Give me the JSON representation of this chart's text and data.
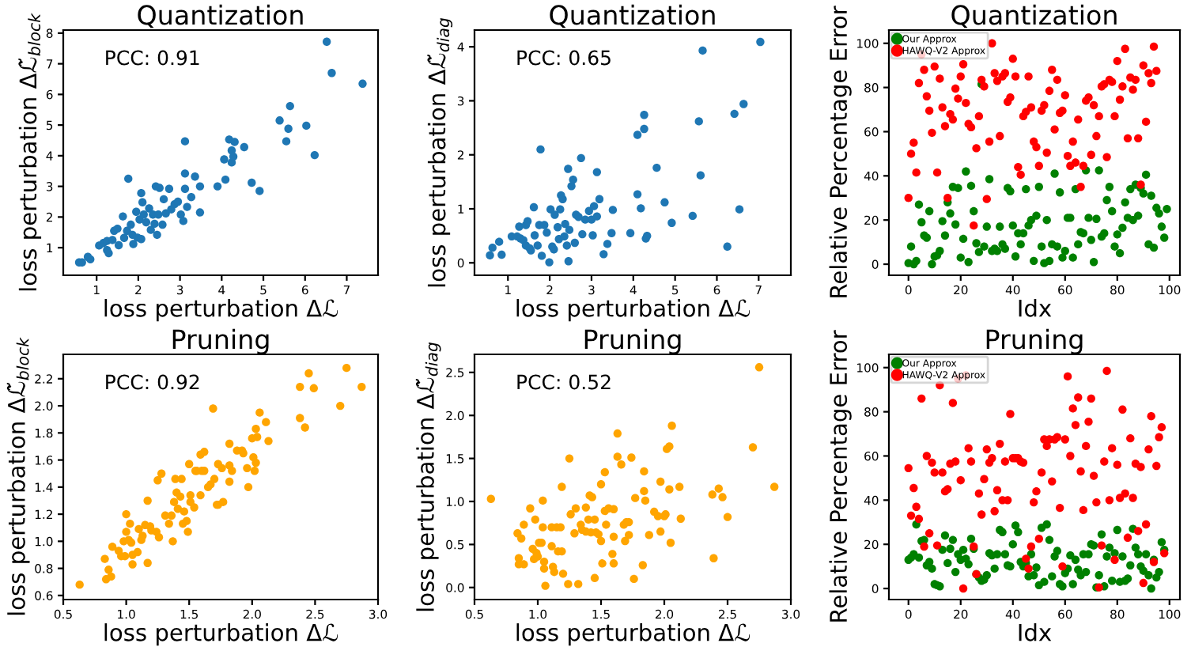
{
  "chart_data": [
    {
      "type": "scatter",
      "title": "Quantization",
      "xlabel": "loss perturbation Δℒ",
      "ylabel": "loss perturbation Δℒ̃$_{block}$",
      "annotations": [
        "PCC: 0.91"
      ],
      "xlim": [
        0.2,
        7.75
      ],
      "ylim": [
        0.1,
        8.1
      ],
      "xticks": [
        1,
        2,
        3,
        4,
        5,
        6,
        7
      ],
      "yticks": [
        1,
        2,
        3,
        4,
        5,
        6,
        7,
        8
      ],
      "marker": "circle",
      "grid": false,
      "legend": false,
      "series": [
        {
          "color": "#1f77b4",
          "x": [
            0.58,
            0.65,
            0.79,
            0.85,
            1.06,
            1.16,
            1.25,
            1.25,
            1.29,
            1.38,
            1.42,
            1.5,
            1.53,
            1.63,
            1.66,
            1.73,
            1.76,
            1.82,
            1.86,
            1.88,
            1.95,
            1.98,
            2.03,
            2.07,
            2.07,
            2.1,
            2.13,
            2.19,
            2.26,
            2.3,
            2.35,
            2.39,
            2.42,
            2.45,
            2.48,
            2.51,
            2.58,
            2.61,
            2.66,
            2.74,
            2.79,
            2.87,
            2.95,
            3.02,
            3.08,
            3.12,
            3.12,
            3.12,
            3.17,
            3.27,
            3.36,
            3.48,
            3.48,
            3.9,
            4.06,
            4.09,
            4.18,
            4.24,
            4.24,
            4.28,
            4.31,
            4.54,
            4.72,
            4.91,
            5.39,
            5.55,
            5.6,
            5.64,
            6.03,
            6.23,
            6.52,
            6.64,
            7.38
          ],
          "values": [
            0.52,
            0.52,
            0.7,
            0.62,
            1.07,
            1.15,
            1.22,
            0.92,
            0.82,
            1.25,
            1.55,
            1.62,
            1.08,
            2.02,
            1.32,
            1.55,
            3.25,
            1.75,
            1.42,
            1.12,
            2.17,
            1.33,
            1.92,
            2.78,
            1.28,
            2.48,
            2.08,
            1.83,
            2.28,
            1.58,
            2.08,
            1.78,
            3.0,
            1.42,
            2.08,
            2.95,
            1.75,
            2.58,
            2.12,
            2.92,
            2.25,
            2.42,
            2.5,
            2.08,
            1.87,
            4.47,
            3.42,
            2.92,
            2.33,
            2.65,
            3.32,
            3.0,
            2.15,
            3.0,
            3.88,
            3.22,
            4.53,
            3.78,
            4.17,
            3.97,
            4.45,
            4.28,
            3.12,
            2.85,
            5.15,
            4.47,
            4.88,
            5.62,
            4.98,
            4.02,
            7.72,
            6.7,
            6.35
          ]
        }
      ]
    },
    {
      "type": "scatter",
      "title": "Quantization",
      "xlabel": "loss perturbation Δℒ",
      "ylabel": "loss perturbation Δℒ̃$_{diag}$",
      "annotations": [
        "PCC: 0.65"
      ],
      "xlim": [
        0.2,
        7.77
      ],
      "ylim": [
        -0.23,
        4.31
      ],
      "xticks": [
        1,
        2,
        3,
        4,
        5,
        6,
        7
      ],
      "yticks": [
        0,
        1,
        2,
        3,
        4
      ],
      "marker": "circle",
      "grid": false,
      "legend": false,
      "series": [
        {
          "color": "#1f77b4",
          "x": [
            0.57,
            0.63,
            0.79,
            0.85,
            1.09,
            1.22,
            1.3,
            1.27,
            1.37,
            1.43,
            1.47,
            1.43,
            1.52,
            1.55,
            1.62,
            1.64,
            1.71,
            1.75,
            1.78,
            1.81,
            1.87,
            1.93,
            1.99,
            2.02,
            2.06,
            2.1,
            2.12,
            2.19,
            2.22,
            2.25,
            2.27,
            2.31,
            2.35,
            2.37,
            2.41,
            2.44,
            2.45,
            2.47,
            2.52,
            2.56,
            2.6,
            2.63,
            2.69,
            2.75,
            2.78,
            2.85,
            2.94,
            3.0,
            3.03,
            3.06,
            3.13,
            3.13,
            3.19,
            3.29,
            3.38,
            3.48,
            3.51,
            3.93,
            4.1,
            4.1,
            4.18,
            4.26,
            4.26,
            4.3,
            4.33,
            4.56,
            4.75,
            4.92,
            5.42,
            5.57,
            5.61,
            5.66,
            6.25,
            6.42,
            6.54,
            6.64,
            7.04
          ],
          "values": [
            0.14,
            0.28,
            0.39,
            0.15,
            0.49,
            0.49,
            0.45,
            0.67,
            0.42,
            0.7,
            0.77,
            0.32,
            0.27,
            0.23,
            1.03,
            0.51,
            0.32,
            0.7,
            2.1,
            0.13,
            0.7,
            0.56,
            0.01,
            0.99,
            0.3,
            0.25,
            0.89,
            0.66,
            0.44,
            0.99,
            1.25,
            1.18,
            0.49,
            0.72,
            0.32,
            1.74,
            0.03,
            0.61,
            1.42,
            1.54,
            0.37,
            0.89,
            0.85,
            1.94,
            0.53,
            0.8,
            0.96,
            0.8,
            0.51,
            1.05,
            1.68,
            0.86,
            1.18,
            0.16,
            0.35,
            0.55,
            0.98,
            0.55,
            1.27,
            2.37,
            1.01,
            2.74,
            2.48,
            0.45,
            0.5,
            1.76,
            1.12,
            0.74,
            0.87,
            2.62,
            1.62,
            3.93,
            0.3,
            2.76,
            0.99,
            2.94,
            4.09
          ]
        }
      ]
    },
    {
      "type": "scatter",
      "title": "Quantization",
      "xlabel": "Idx",
      "ylabel": "Relative Percentage Error",
      "xlim": [
        -7.5,
        104
      ],
      "ylim": [
        -5,
        106
      ],
      "xticks": [
        0,
        20,
        40,
        60,
        80,
        100
      ],
      "yticks": [
        0,
        20,
        40,
        60,
        80,
        100
      ],
      "marker": "circle",
      "grid": false,
      "legend": "top left",
      "series": [
        {
          "name": "Our Approx",
          "color": "#008000",
          "x": [
            0,
            1,
            2,
            3,
            4,
            5,
            6,
            7,
            8,
            9,
            10,
            11,
            12,
            13,
            14,
            15,
            16,
            17,
            18,
            19,
            20,
            21,
            22,
            23,
            24,
            25,
            26,
            27,
            28,
            29,
            30,
            31,
            32,
            33,
            34,
            35,
            36,
            37,
            38,
            39,
            40,
            41,
            42,
            43,
            44,
            45,
            46,
            47,
            48,
            49,
            50,
            51,
            52,
            53,
            54,
            55,
            56,
            57,
            58,
            59,
            60,
            61,
            62,
            63,
            64,
            65,
            66,
            67,
            68,
            69,
            70,
            71,
            72,
            73,
            74,
            75,
            76,
            77,
            78,
            79,
            80,
            81,
            82,
            83,
            84,
            85,
            86,
            87,
            88,
            89,
            90,
            91,
            92,
            93,
            94,
            95,
            96,
            97,
            98,
            99
          ],
          "values": [
            0.5,
            8,
            0,
            1.5,
            27,
            19,
            13,
            12,
            24,
            0,
            3.5,
            4,
            6,
            19.5,
            13,
            28,
            23,
            35,
            18,
            34.5,
            3,
            11.5,
            42,
            1,
            35.5,
            24,
            9.5,
            5.5,
            81.5,
            8,
            17,
            38.5,
            6,
            7,
            6,
            17,
            9,
            7,
            34.5,
            33,
            17.5,
            3.5,
            14,
            9,
            14,
            34,
            17.5,
            20,
            1.5,
            22,
            35,
            8,
            0.5,
            20,
            1.5,
            9,
            41,
            8,
            32.5,
            3,
            6,
            21,
            21,
            3,
            34,
            9,
            14.5,
            14,
            42.5,
            21,
            11,
            1,
            20.5,
            42.5,
            12.5,
            14,
            29,
            35,
            24,
            8,
            13.5,
            5,
            16.5,
            28,
            21,
            34,
            20,
            36,
            22,
            34.5,
            32,
            40.5,
            9,
            31,
            7.5,
            25.5,
            23,
            17,
            12,
            25
          ]
        },
        {
          "name": "HAWQ-V2 Approx",
          "color": "#ff0000",
          "x": [
            0,
            1,
            2,
            3,
            4,
            5,
            6,
            7,
            8,
            9,
            10,
            11,
            12,
            13,
            14,
            15,
            16,
            17,
            18,
            19,
            20,
            21,
            22,
            23,
            24,
            25,
            26,
            27,
            28,
            29,
            30,
            31,
            32,
            33,
            34,
            35,
            36,
            37,
            38,
            39,
            40,
            41,
            42,
            43,
            44,
            45,
            46,
            47,
            48,
            49,
            50,
            51,
            52,
            53,
            54,
            55,
            56,
            57,
            58,
            59,
            60,
            61,
            62,
            63,
            64,
            65,
            66,
            67,
            68,
            69,
            70,
            71,
            72,
            73,
            74,
            75,
            76,
            77,
            78,
            79,
            80,
            81,
            82,
            83,
            84,
            85,
            86,
            87,
            88,
            89,
            90,
            91,
            92,
            93,
            94,
            95
          ],
          "values": [
            30,
            50,
            55,
            41.5,
            82,
            95,
            88,
            76,
            69.5,
            59.5,
            89.5,
            41.5,
            84,
            71,
            62.5,
            30,
            68,
            65.5,
            79.5,
            75,
            85,
            90.5,
            73,
            63.5,
            62,
            17.5,
            52.5,
            67,
            83.5,
            80.5,
            29.5,
            55.5,
            100,
            86.5,
            83,
            58,
            85,
            86.5,
            73.5,
            75.5,
            93,
            85,
            44,
            40.5,
            67,
            69,
            85,
            71,
            55.5,
            53,
            44.5,
            69.5,
            72,
            50.5,
            78.5,
            88,
            61,
            83.5,
            68.5,
            69.5,
            76.5,
            49,
            44.5,
            55.5,
            46,
            65.5,
            35,
            44.5,
            74,
            75.5,
            49.5,
            72,
            58,
            67,
            80.5,
            81.5,
            48.5,
            83.5,
            82.5,
            67,
            92,
            74.5,
            80.5,
            97.5,
            57,
            84.5,
            79,
            83.5,
            57,
            36,
            90,
            64.5,
            86.5,
            82,
            98.5,
            87.5
          ]
        }
      ]
    },
    {
      "type": "scatter",
      "title": "Pruning",
      "xlabel": "loss perturbation Δℒ",
      "ylabel": "loss perturbation Δℒ̃$_{block}$",
      "annotations": [
        "PCC: 0.92"
      ],
      "xlim": [
        0.5,
        3.0
      ],
      "ylim": [
        0.57,
        2.38
      ],
      "xticks": [
        0.5,
        {
          "value": 1,
          "label": "1.0"
        },
        1.5,
        {
          "value": 2,
          "label": "2.0"
        },
        2.5,
        {
          "value": 3,
          "label": "3.0"
        }
      ],
      "yticks": [
        0.6,
        0.8,
        {
          "value": 1,
          "label": "1.0"
        },
        1.2,
        1.4,
        1.6,
        1.8,
        {
          "value": 2,
          "label": "2.0"
        },
        2.2
      ],
      "marker": "circle",
      "grid": false,
      "legend": false,
      "series": [
        {
          "color": "#ffa500",
          "x": [
            0.63,
            0.83,
            0.84,
            0.86,
            0.88,
            0.89,
            0.94,
            0.96,
            0.98,
            0.99,
            1.0,
            1.0,
            1.02,
            1.03,
            1.04,
            1.05,
            1.05,
            1.09,
            1.1,
            1.12,
            1.13,
            1.15,
            1.17,
            1.17,
            1.19,
            1.2,
            1.24,
            1.25,
            1.26,
            1.28,
            1.31,
            1.34,
            1.36,
            1.37,
            1.38,
            1.39,
            1.4,
            1.41,
            1.43,
            1.44,
            1.45,
            1.46,
            1.48,
            1.49,
            1.5,
            1.51,
            1.51,
            1.54,
            1.55,
            1.56,
            1.59,
            1.59,
            1.6,
            1.62,
            1.62,
            1.65,
            1.67,
            1.69,
            1.7,
            1.72,
            1.73,
            1.73,
            1.76,
            1.77,
            1.82,
            1.82,
            1.82,
            1.84,
            1.88,
            1.92,
            1.93,
            1.96,
            1.97,
            2.0,
            2.01,
            2.02,
            2.03,
            2.03,
            2.04,
            2.06,
            2.11,
            2.13,
            2.38,
            2.38,
            2.42,
            2.45,
            2.49,
            2.7,
            2.75,
            2.87
          ],
          "values": [
            0.68,
            0.87,
            0.72,
            0.79,
            0.74,
            0.96,
            0.93,
            0.89,
            1.0,
            0.89,
            1.2,
            1.07,
            1.01,
            1.13,
            0.99,
            0.83,
            0.9,
            0.92,
            1.09,
            1.01,
            1.04,
            1.12,
            1.3,
            0.84,
            1.11,
            1.08,
            1.07,
            1.45,
            1.03,
            1.5,
            1.19,
            1.13,
            1.19,
            1.0,
            1.29,
            1.46,
            1.36,
            1.24,
            1.33,
            1.46,
            1.13,
            1.22,
            1.15,
            1.07,
            1.57,
            1.34,
            1.29,
            1.25,
            1.52,
            1.52,
            1.34,
            1.64,
            1.52,
            1.66,
            1.52,
            1.4,
            1.42,
            1.98,
            1.46,
            1.27,
            1.27,
            1.57,
            1.54,
            1.29,
            1.72,
            1.44,
            1.56,
            1.52,
            1.67,
            1.67,
            1.65,
            1.54,
            1.4,
            1.76,
            1.62,
            1.52,
            1.83,
            1.58,
            1.77,
            1.95,
            1.88,
            1.74,
            2.14,
            1.91,
            1.84,
            2.24,
            2.13,
            2.0,
            2.28,
            2.14
          ]
        }
      ]
    },
    {
      "type": "scatter",
      "title": "Pruning",
      "xlabel": "loss perturbation Δℒ",
      "ylabel": "loss perturbation Δℒ̃$_{diag}$",
      "annotations": [
        "PCC: 0.52"
      ],
      "xlim": [
        0.5,
        3.0
      ],
      "ylim": [
        -0.14,
        2.71
      ],
      "xticks": [
        0.5,
        {
          "value": 1,
          "label": "1.0"
        },
        1.5,
        {
          "value": 2,
          "label": "2.0"
        },
        2.5,
        {
          "value": 3,
          "label": "3.0"
        }
      ],
      "yticks": [
        {
          "value": 0,
          "label": "0.0"
        },
        0.5,
        {
          "value": 1,
          "label": "1.0"
        },
        1.5,
        {
          "value": 2,
          "label": "2.0"
        },
        2.5
      ],
      "marker": "circle",
      "grid": false,
      "legend": false,
      "series": [
        {
          "color": "#ffa500",
          "x": [
            0.63,
            0.84,
            0.85,
            0.85,
            0.87,
            0.89,
            0.89,
            0.94,
            0.96,
            0.97,
            0.98,
            0.99,
            1.0,
            1.01,
            1.03,
            1.04,
            1.04,
            1.05,
            1.05,
            1.06,
            1.11,
            1.11,
            1.12,
            1.13,
            1.15,
            1.16,
            1.18,
            1.19,
            1.19,
            1.2,
            1.24,
            1.25,
            1.26,
            1.29,
            1.3,
            1.32,
            1.34,
            1.35,
            1.38,
            1.38,
            1.4,
            1.41,
            1.42,
            1.43,
            1.45,
            1.45,
            1.46,
            1.48,
            1.5,
            1.5,
            1.51,
            1.53,
            1.53,
            1.54,
            1.56,
            1.59,
            1.6,
            1.6,
            1.6,
            1.63,
            1.63,
            1.66,
            1.68,
            1.69,
            1.7,
            1.72,
            1.72,
            1.74,
            1.76,
            1.77,
            1.83,
            1.84,
            1.84,
            1.85,
            1.88,
            1.92,
            1.95,
            1.97,
            1.97,
            2.0,
            2.01,
            2.02,
            2.04,
            2.04,
            2.05,
            2.06,
            2.12,
            2.13,
            2.38,
            2.39,
            2.43,
            2.46,
            2.5,
            2.7,
            2.75,
            2.87
          ],
          "values": [
            1.03,
            0.63,
            0.34,
            0.27,
            0.57,
            0.73,
            0.27,
            0.92,
            0.45,
            0.33,
            0.79,
            0.4,
            0.36,
            0.52,
            0.52,
            0.7,
            1.01,
            0.3,
            0.22,
            0.02,
            0.7,
            0.48,
            0.24,
            0.18,
            0.7,
            0.42,
            0.7,
            0.42,
            1.17,
            0.16,
            0.04,
            1.5,
            0.85,
            0.63,
            0.92,
            0.04,
            0.73,
            0.67,
            0.93,
            0.65,
            0.79,
            1.07,
            0.64,
            1.05,
            0.79,
            0.11,
            0.64,
            0.62,
            1.2,
            0.54,
            0.28,
            1.34,
            0.89,
            0.73,
            0.92,
            0.39,
            0.28,
            0.91,
            0.59,
            1.79,
            1.52,
            1.43,
            0.73,
            0.54,
            0.76,
            0.76,
            0.61,
            1.51,
            0.1,
            1.04,
            0.26,
            1.35,
            1.12,
            1.01,
            0.61,
            0.88,
            0.83,
            1.23,
            0.65,
            0.83,
            0.85,
            1.61,
            1.64,
            1.14,
            0.52,
            1.88,
            1.17,
            0.8,
            1.08,
            0.34,
            1.15,
            1.05,
            0.82,
            1.63,
            2.56,
            1.17
          ]
        }
      ]
    },
    {
      "type": "scatter",
      "title": "Pruning",
      "xlabel": "Idx",
      "ylabel": "Relative Percentage Error",
      "xlim": [
        -7.5,
        104
      ],
      "ylim": [
        -5,
        106
      ],
      "xticks": [
        0,
        20,
        40,
        60,
        80,
        100
      ],
      "yticks": [
        0,
        20,
        40,
        60,
        80,
        100
      ],
      "marker": "circle",
      "grid": false,
      "legend": "top left",
      "series": [
        {
          "name": "Our Approx",
          "color": "#008000",
          "x": [
            0,
            1,
            2,
            3,
            4,
            5,
            6,
            7,
            8,
            9,
            10,
            11,
            12,
            13,
            14,
            15,
            16,
            17,
            18,
            19,
            20,
            21,
            22,
            23,
            24,
            25,
            26,
            27,
            28,
            29,
            30,
            31,
            32,
            33,
            34,
            35,
            36,
            37,
            38,
            39,
            40,
            41,
            42,
            43,
            44,
            45,
            46,
            47,
            48,
            49,
            50,
            51,
            52,
            53,
            54,
            55,
            56,
            57,
            58,
            59,
            60,
            61,
            62,
            63,
            64,
            65,
            66,
            67,
            68,
            69,
            70,
            71,
            72,
            73,
            74,
            75,
            76,
            77,
            78,
            79,
            80,
            81,
            82,
            83,
            84,
            85,
            86,
            87,
            88,
            89,
            90,
            91,
            92,
            93,
            94,
            95,
            96,
            97,
            98
          ],
          "values": [
            13,
            14,
            15.5,
            29,
            14,
            21.5,
            22,
            10.5,
            12,
            9,
            2,
            1.5,
            1,
            17.5,
            24,
            11.5,
            18,
            22,
            7.5,
            15.5,
            13,
            17.5,
            13.5,
            11,
            22.5,
            18,
            6.5,
            5,
            3.5,
            4,
            6,
            16,
            15,
            9,
            15.5,
            26.5,
            25.5,
            15.5,
            10.5,
            10,
            20,
            28.5,
            25.5,
            12,
            10,
            11.5,
            5.5,
            15.5,
            6,
            9.5,
            1.5,
            27.5,
            3,
            29,
            22,
            5.5,
            14.5,
            17,
            2,
            1,
            7,
            9,
            15,
            2,
            13,
            8.5,
            6,
            15.5,
            7.5,
            15.5,
            20,
            19.5,
            0.5,
            6,
            24.5,
            1,
            14.5,
            18.5,
            3.5,
            16,
            26.5,
            3,
            14.5,
            3.5,
            4.5,
            10.5,
            27,
            18.5,
            15.5,
            10,
            8,
            15.5,
            6,
            0,
            13,
            5,
            7.5,
            21,
            17.5
          ]
        },
        {
          "name": "HAWQ-V2 Approx",
          "color": "#ff0000",
          "x": [
            0,
            1,
            2,
            3,
            4,
            5,
            6,
            7,
            8,
            9,
            10,
            11,
            12,
            13,
            14,
            15,
            16,
            17,
            18,
            19,
            20,
            21,
            22,
            23,
            24,
            25,
            26,
            27,
            28,
            29,
            30,
            31,
            32,
            33,
            34,
            35,
            36,
            37,
            38,
            39,
            40,
            41,
            42,
            43,
            44,
            45,
            46,
            47,
            48,
            49,
            50,
            51,
            52,
            53,
            54,
            55,
            56,
            57,
            58,
            59,
            60,
            61,
            62,
            63,
            64,
            65,
            66,
            67,
            68,
            69,
            70,
            71,
            72,
            73,
            74,
            75,
            76,
            77,
            78,
            79,
            80,
            81,
            82,
            83,
            84,
            85,
            86,
            87,
            88,
            89,
            90,
            91,
            92,
            93,
            94,
            95,
            96,
            97,
            98
          ],
          "values": [
            54.5,
            33,
            45.5,
            37,
            31.5,
            86,
            19,
            60,
            25,
            57,
            52.5,
            19.5,
            92,
            52.5,
            44,
            45,
            56.5,
            84,
            57.5,
            95,
            49,
            0,
            96.5,
            63.5,
            57.5,
            19,
            6.5,
            43,
            33.5,
            49.5,
            63,
            57,
            59,
            35,
            44.5,
            65.5,
            40,
            57.5,
            40,
            79,
            59,
            59,
            59,
            57.5,
            57,
            13.5,
            9,
            19,
            39,
            44,
            22.5,
            52.5,
            67.5,
            64.5,
            67.5,
            48.5,
            67.5,
            68.5,
            36.5,
            10,
            67.5,
            96,
            60,
            81.5,
            74,
            86.5,
            53,
            35.5,
            64.5,
            75.5,
            86,
            51,
            39,
            0.5,
            19.5,
            57.5,
            98.5,
            40,
            63.5,
            13,
            56,
            41,
            81,
            43,
            23,
            68,
            41,
            56.5,
            26,
            55,
            2.5,
            29,
            63,
            78,
            12,
            55.5,
            68.5,
            73,
            16
          ]
        }
      ]
    }
  ]
}
